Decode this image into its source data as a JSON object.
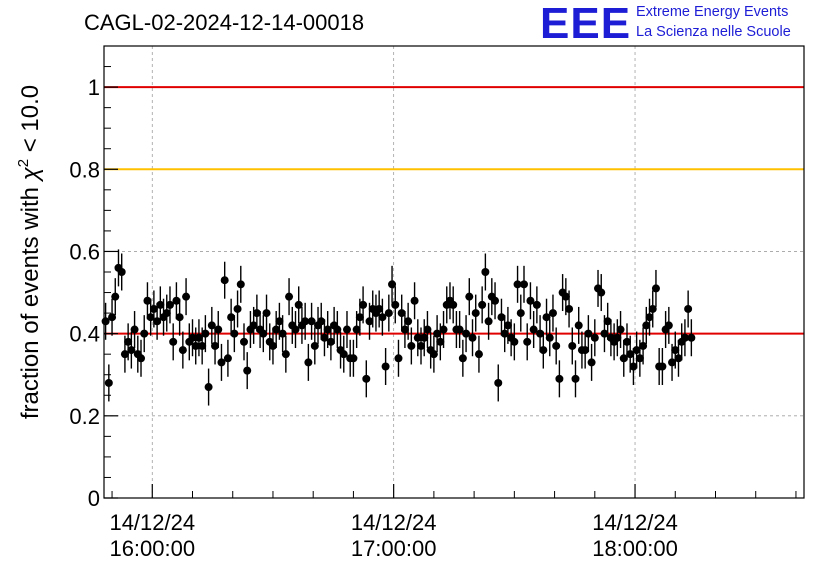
{
  "title": "CAGL-02-2024-12-14-00018",
  "logo": {
    "mark": "EEE",
    "line1": "Extreme Energy Events",
    "line2": "La Scienza nelle Scuole",
    "color": "#1d1dd6"
  },
  "colors": {
    "red_line": "#e00000",
    "orange_line": "#ffc000",
    "points": "#000000",
    "grid": "#a0a0a0"
  },
  "chart_data": {
    "type": "scatter",
    "title": "CAGL-02-2024-12-14-00018",
    "ylabel_main": "fraction of events with ",
    "ylabel_sym": "χ",
    "ylabel_sup": "2",
    "ylabel_tail": " < 10.0",
    "ylim": [
      0,
      1.1
    ],
    "yticks": [
      "0",
      "0.2",
      "0.4",
      "0.6",
      "0.8",
      "1"
    ],
    "ytick_values": [
      0,
      0.2,
      0.4,
      0.6,
      0.8,
      1.0
    ],
    "xlim_minutes": [
      -12,
      162
    ],
    "xticks": [
      {
        "date": "14/12/24",
        "time": "16:00:00",
        "minute": 0
      },
      {
        "date": "14/12/24",
        "time": "17:00:00",
        "minute": 60
      },
      {
        "date": "14/12/24",
        "time": "18:00:00",
        "minute": 120
      }
    ],
    "reference_lines": [
      {
        "y": 1.0,
        "color": "#e00000"
      },
      {
        "y": 0.8,
        "color": "#ffc000"
      },
      {
        "y": 0.4,
        "color": "#e00000"
      }
    ],
    "error": 0.045,
    "grid": true,
    "points": [
      [
        -11.6,
        0.43
      ],
      [
        -10.8,
        0.28
      ],
      [
        -10.0,
        0.44
      ],
      [
        -9.2,
        0.49
      ],
      [
        -8.4,
        0.56
      ],
      [
        -7.6,
        0.55
      ],
      [
        -6.8,
        0.35
      ],
      [
        -6.0,
        0.38
      ],
      [
        -5.2,
        0.36
      ],
      [
        -4.4,
        0.41
      ],
      [
        -3.6,
        0.35
      ],
      [
        -2.8,
        0.34
      ],
      [
        -2.0,
        0.4
      ],
      [
        -1.2,
        0.48
      ],
      [
        -0.4,
        0.44
      ],
      [
        0.4,
        0.46
      ],
      [
        1.2,
        0.43
      ],
      [
        2.0,
        0.47
      ],
      [
        2.8,
        0.44
      ],
      [
        3.6,
        0.45
      ],
      [
        4.4,
        0.47
      ],
      [
        5.2,
        0.38
      ],
      [
        6.0,
        0.48
      ],
      [
        6.8,
        0.44
      ],
      [
        7.6,
        0.36
      ],
      [
        8.4,
        0.49
      ],
      [
        9.2,
        0.38
      ],
      [
        10.0,
        0.39
      ],
      [
        10.8,
        0.37
      ],
      [
        11.6,
        0.39
      ],
      [
        12.4,
        0.37
      ],
      [
        13.2,
        0.4
      ],
      [
        14.0,
        0.27
      ],
      [
        14.8,
        0.42
      ],
      [
        15.6,
        0.37
      ],
      [
        16.4,
        0.41
      ],
      [
        17.2,
        0.33
      ],
      [
        18.0,
        0.53
      ],
      [
        18.8,
        0.34
      ],
      [
        19.6,
        0.44
      ],
      [
        20.4,
        0.4
      ],
      [
        21.2,
        0.46
      ],
      [
        22.0,
        0.52
      ],
      [
        22.8,
        0.38
      ],
      [
        23.6,
        0.31
      ],
      [
        24.4,
        0.41
      ],
      [
        25.2,
        0.42
      ],
      [
        26.0,
        0.45
      ],
      [
        26.8,
        0.41
      ],
      [
        27.6,
        0.4
      ],
      [
        28.4,
        0.45
      ],
      [
        29.2,
        0.38
      ],
      [
        30.0,
        0.37
      ],
      [
        30.8,
        0.41
      ],
      [
        31.6,
        0.43
      ],
      [
        32.4,
        0.4
      ],
      [
        33.2,
        0.35
      ],
      [
        34.0,
        0.49
      ],
      [
        34.8,
        0.42
      ],
      [
        35.6,
        0.41
      ],
      [
        36.4,
        0.47
      ],
      [
        37.2,
        0.42
      ],
      [
        38.0,
        0.43
      ],
      [
        38.8,
        0.33
      ],
      [
        39.6,
        0.43
      ],
      [
        40.4,
        0.37
      ],
      [
        41.2,
        0.42
      ],
      [
        42.0,
        0.43
      ],
      [
        42.8,
        0.39
      ],
      [
        43.6,
        0.41
      ],
      [
        44.4,
        0.38
      ],
      [
        45.2,
        0.42
      ],
      [
        46.0,
        0.41
      ],
      [
        46.8,
        0.36
      ],
      [
        47.6,
        0.35
      ],
      [
        48.4,
        0.41
      ],
      [
        49.2,
        0.34
      ],
      [
        50.0,
        0.34
      ],
      [
        50.8,
        0.41
      ],
      [
        51.6,
        0.44
      ],
      [
        52.4,
        0.47
      ],
      [
        53.2,
        0.29
      ],
      [
        54.0,
        0.43
      ],
      [
        54.8,
        0.46
      ],
      [
        55.6,
        0.45
      ],
      [
        56.4,
        0.46
      ],
      [
        57.2,
        0.44
      ],
      [
        58.0,
        0.32
      ],
      [
        58.8,
        0.45
      ],
      [
        59.6,
        0.52
      ],
      [
        60.4,
        0.47
      ],
      [
        61.2,
        0.34
      ],
      [
        62.0,
        0.45
      ],
      [
        62.8,
        0.41
      ],
      [
        63.6,
        0.43
      ],
      [
        64.4,
        0.37
      ],
      [
        65.2,
        0.48
      ],
      [
        66.0,
        0.39
      ],
      [
        66.8,
        0.37
      ],
      [
        67.6,
        0.39
      ],
      [
        68.4,
        0.41
      ],
      [
        69.2,
        0.36
      ],
      [
        70.0,
        0.35
      ],
      [
        70.8,
        0.4
      ],
      [
        71.6,
        0.38
      ],
      [
        72.4,
        0.41
      ],
      [
        73.2,
        0.47
      ],
      [
        74.0,
        0.48
      ],
      [
        74.8,
        0.47
      ],
      [
        75.6,
        0.41
      ],
      [
        76.4,
        0.41
      ],
      [
        77.2,
        0.34
      ],
      [
        78.0,
        0.4
      ],
      [
        78.8,
        0.49
      ],
      [
        79.6,
        0.39
      ],
      [
        80.4,
        0.45
      ],
      [
        81.2,
        0.35
      ],
      [
        82.0,
        0.47
      ],
      [
        82.8,
        0.55
      ],
      [
        83.6,
        0.43
      ],
      [
        84.4,
        0.49
      ],
      [
        85.2,
        0.48
      ],
      [
        86.0,
        0.28
      ],
      [
        86.8,
        0.44
      ],
      [
        87.6,
        0.4
      ],
      [
        88.4,
        0.42
      ],
      [
        89.2,
        0.39
      ],
      [
        90.0,
        0.38
      ],
      [
        90.8,
        0.52
      ],
      [
        91.6,
        0.45
      ],
      [
        92.4,
        0.52
      ],
      [
        93.2,
        0.38
      ],
      [
        94.0,
        0.48
      ],
      [
        94.8,
        0.41
      ],
      [
        95.6,
        0.47
      ],
      [
        96.4,
        0.4
      ],
      [
        97.2,
        0.36
      ],
      [
        98.0,
        0.44
      ],
      [
        98.8,
        0.39
      ],
      [
        99.6,
        0.45
      ],
      [
        100.4,
        0.37
      ],
      [
        101.2,
        0.29
      ],
      [
        102.0,
        0.5
      ],
      [
        102.8,
        0.49
      ],
      [
        103.6,
        0.46
      ],
      [
        104.4,
        0.37
      ],
      [
        105.2,
        0.29
      ],
      [
        106.0,
        0.42
      ],
      [
        106.8,
        0.36
      ],
      [
        107.6,
        0.36
      ],
      [
        108.4,
        0.4
      ],
      [
        109.2,
        0.33
      ],
      [
        110.0,
        0.39
      ],
      [
        110.8,
        0.51
      ],
      [
        111.6,
        0.5
      ],
      [
        112.4,
        0.4
      ],
      [
        113.2,
        0.43
      ],
      [
        114.0,
        0.39
      ],
      [
        114.8,
        0.38
      ],
      [
        115.6,
        0.39
      ],
      [
        116.4,
        0.41
      ],
      [
        117.2,
        0.34
      ],
      [
        118.0,
        0.38
      ],
      [
        118.8,
        0.35
      ],
      [
        119.6,
        0.32
      ],
      [
        120.4,
        0.36
      ],
      [
        121.2,
        0.34
      ],
      [
        122.0,
        0.37
      ],
      [
        122.8,
        0.42
      ],
      [
        123.6,
        0.44
      ],
      [
        124.4,
        0.46
      ],
      [
        125.2,
        0.51
      ],
      [
        126.0,
        0.32
      ],
      [
        126.8,
        0.32
      ],
      [
        127.6,
        0.41
      ],
      [
        128.4,
        0.42
      ],
      [
        129.2,
        0.33
      ],
      [
        130.0,
        0.36
      ],
      [
        130.8,
        0.34
      ],
      [
        131.6,
        0.38
      ],
      [
        132.4,
        0.39
      ],
      [
        133.2,
        0.46
      ],
      [
        134.0,
        0.39
      ]
    ]
  }
}
